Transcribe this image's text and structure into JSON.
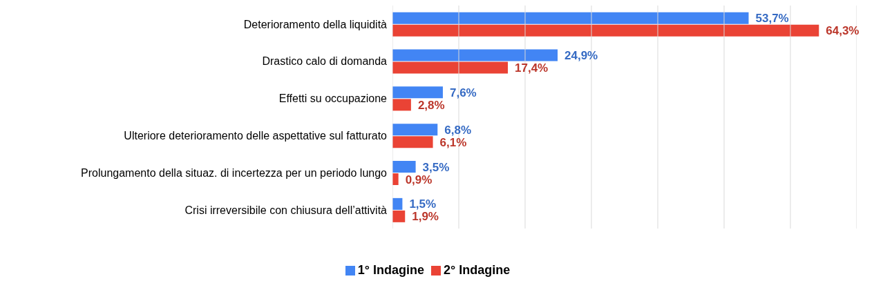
{
  "chart_data": {
    "type": "bar",
    "orientation": "horizontal",
    "categories": [
      "Deterioramento della liquidità",
      "Drastico calo di domanda",
      "Effetti su occupazione",
      "Ulteriore deterioramento delle aspettative sul fatturato",
      "Prolungamento della situaz. di incertezza per un periodo lungo",
      "Crisi irreversibile con chiusura dell’attività"
    ],
    "series": [
      {
        "name": "1° Indagine",
        "color": "#4285f4",
        "values": [
          53.7,
          24.9,
          7.6,
          6.8,
          3.5,
          1.5
        ],
        "value_labels": [
          "53,7%",
          "24,9%",
          "7,6%",
          "6,8%",
          "3,5%",
          "1,5%"
        ]
      },
      {
        "name": "2° Indagine",
        "color": "#ea4335",
        "values": [
          64.3,
          17.4,
          2.8,
          6.1,
          0.9,
          1.9
        ],
        "value_labels": [
          "64,3%",
          "17,4%",
          "2,8%",
          "6,1%",
          "0,9%",
          "1,9%"
        ]
      }
    ],
    "xlim": [
      0,
      70
    ],
    "xticks": [
      {
        "value": 0,
        "label": null
      },
      {
        "value": 10,
        "label": null
      },
      {
        "value": 20,
        "label": null
      },
      {
        "value": 30,
        "label": null
      },
      {
        "value": 40,
        "label": null
      },
      {
        "value": 50,
        "label": null
      },
      {
        "value": 60,
        "label": null
      },
      {
        "value": 70,
        "label": null
      }
    ],
    "tick_labels": "y",
    "grid": "x",
    "legend": "bottom"
  }
}
